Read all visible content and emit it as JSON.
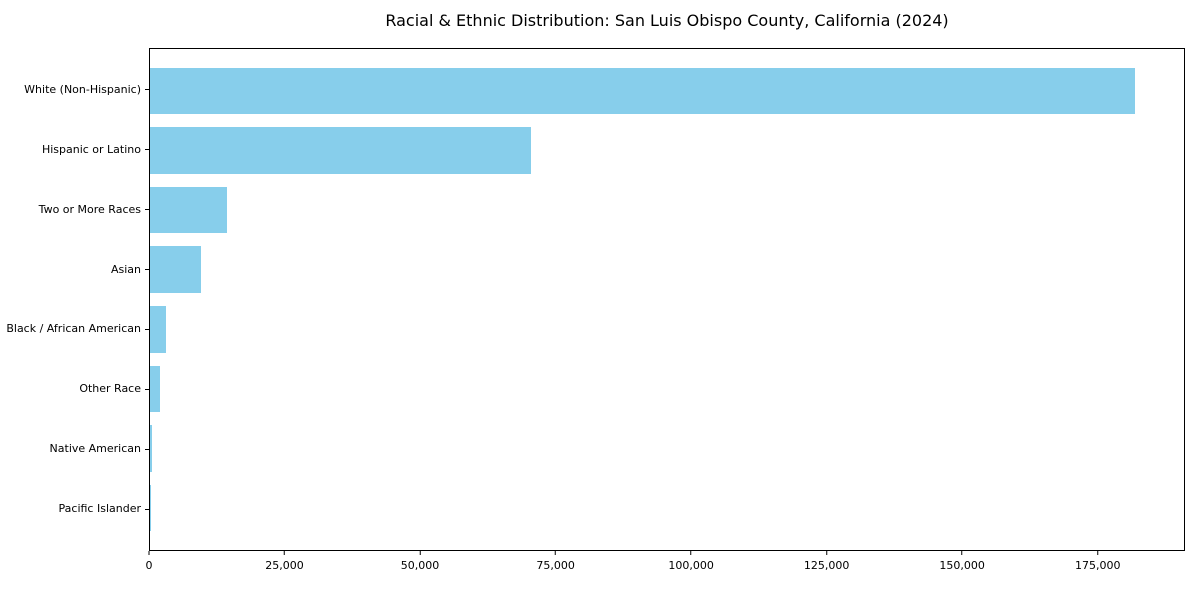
{
  "chart_data": {
    "type": "bar",
    "orientation": "horizontal",
    "title": "Racial & Ethnic Distribution: San Luis Obispo County, California (2024)",
    "categories": [
      "White (Non-Hispanic)",
      "Hispanic or Latino",
      "Two or More Races",
      "Asian",
      "Black / African American",
      "Other Race",
      "Native American",
      "Pacific Islander"
    ],
    "values": [
      182000,
      70500,
      14200,
      9500,
      3000,
      1900,
      450,
      150
    ],
    "xlabel": "",
    "ylabel": "",
    "xlim": [
      0,
      191100
    ],
    "xticks": [
      0,
      25000,
      50000,
      75000,
      100000,
      125000,
      150000,
      175000
    ],
    "xtick_labels": [
      "0",
      "25,000",
      "50,000",
      "75,000",
      "100,000",
      "125,000",
      "150,000",
      "175,000"
    ],
    "bar_color": "#87CEEB",
    "grid": false,
    "legend_position": "none"
  }
}
